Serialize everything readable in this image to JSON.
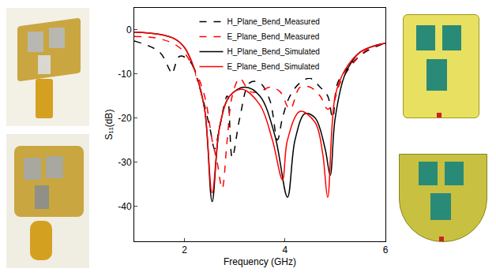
{
  "chart_data": {
    "type": "line",
    "x_label": "Frequency (GHz)",
    "y_label": "S₁₁(dB)",
    "xlim": [
      1,
      6
    ],
    "xticks": [
      2,
      4,
      6
    ],
    "ylim": [
      -48,
      5
    ],
    "yticks": [
      -40,
      -30,
      -20,
      -10,
      0
    ],
    "grid": false,
    "legend": "top",
    "series": [
      {
        "name": "H_Plane_Bend_Measured",
        "color": "#000000",
        "line_style": "dash",
        "x": [
          1,
          1.5,
          1.7,
          1.75,
          1.9,
          2.1,
          2.3,
          2.5,
          2.6,
          2.7,
          2.85,
          2.95,
          3.1,
          3.3,
          3.5,
          3.7,
          3.85,
          3.95,
          4.1,
          4.3,
          4.5,
          4.7,
          4.85,
          4.95,
          5.05,
          5.3,
          5.6,
          6
        ],
        "values": [
          -2.5,
          -5,
          -9,
          -10,
          -6,
          -7,
          -13,
          -22,
          -27,
          -22,
          -15,
          -29,
          -20,
          -12,
          -12,
          -16,
          -25,
          -20,
          -15,
          -12,
          -11,
          -13,
          -15,
          -20,
          -12,
          -8,
          -5,
          -3
        ]
      },
      {
        "name": "E_Plane_Bend_Measured",
        "color": "#ff0000",
        "line_style": "dash",
        "x": [
          1,
          1.5,
          1.9,
          2.2,
          2.4,
          2.55,
          2.65,
          2.75,
          2.85,
          2.95,
          3.1,
          3.3,
          3.5,
          3.7,
          3.9,
          4.1,
          4.3,
          4.5,
          4.7,
          4.85,
          4.95,
          5.1,
          5.4,
          5.7,
          6
        ],
        "values": [
          -1.5,
          -2,
          -4,
          -9,
          -15,
          -25,
          -30,
          -36,
          -25,
          -15,
          -11,
          -14,
          -14,
          -13,
          -14,
          -18,
          -13,
          -13,
          -15,
          -18,
          -17,
          -12,
          -7,
          -4,
          -3
        ]
      },
      {
        "name": "H_Plane_Bend_Simulated",
        "color": "#000000",
        "line_style": "solid",
        "x": [
          1,
          1.5,
          1.8,
          2,
          2.2,
          2.4,
          2.55,
          2.7,
          2.9,
          3.2,
          3.5,
          3.8,
          4.05,
          4.2,
          4.4,
          4.6,
          4.8,
          4.9,
          5,
          5.2,
          5.5,
          6
        ],
        "values": [
          -0.5,
          -1,
          -2,
          -4,
          -9,
          -18,
          -39,
          -22,
          -15,
          -13,
          -15,
          -24,
          -38,
          -25,
          -19,
          -20,
          -27,
          -33,
          -20,
          -10,
          -5,
          -3
        ]
      },
      {
        "name": "E_Plane_Bend_Simulated",
        "color": "#ff0000",
        "line_style": "solid",
        "x": [
          1,
          1.5,
          1.8,
          2,
          2.2,
          2.4,
          2.55,
          2.7,
          2.9,
          3.15,
          3.5,
          3.75,
          3.95,
          4.05,
          4.3,
          4.6,
          4.75,
          4.85,
          5,
          5.2,
          5.5,
          6
        ],
        "values": [
          -0.5,
          -1,
          -2,
          -4,
          -9,
          -18,
          -37,
          -22,
          -15,
          -13.5,
          -17,
          -25,
          -34,
          -25,
          -18.5,
          -21,
          -28,
          -38,
          -15,
          -9,
          -5,
          -3
        ]
      }
    ]
  }
}
